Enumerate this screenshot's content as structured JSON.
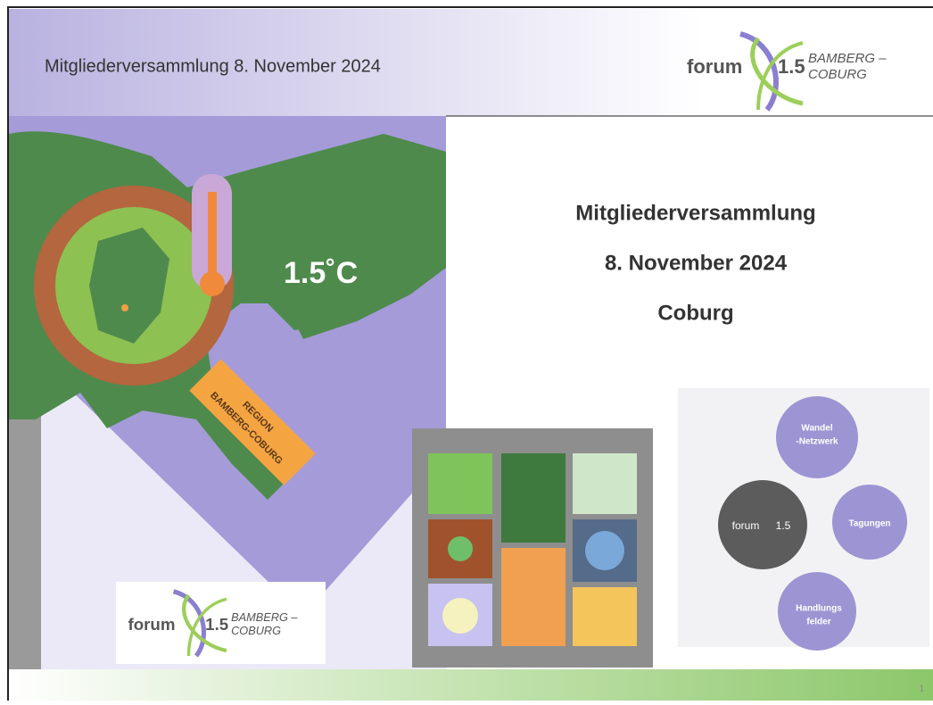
{
  "header": {
    "title": "Mitgliederversammlung 8. November 2024"
  },
  "logo": {
    "word": "forum",
    "number": "1.5",
    "region": [
      "BAMBERG –",
      "COBURG"
    ]
  },
  "main": {
    "lines": [
      "Mitgliederversammlung",
      "8. November 2024",
      "Coburg"
    ]
  },
  "map": {
    "temperature": "1.5˚C",
    "label": [
      "REGION",
      "BAMBERG-COBURG"
    ]
  },
  "diagram": {
    "center": [
      "forum",
      "1.5"
    ],
    "nodes": [
      [
        "Wandel",
        "-Netzwerk"
      ],
      [
        "Tagungen"
      ],
      [
        "Handlungs",
        "felder"
      ]
    ]
  },
  "page_number": "1"
}
